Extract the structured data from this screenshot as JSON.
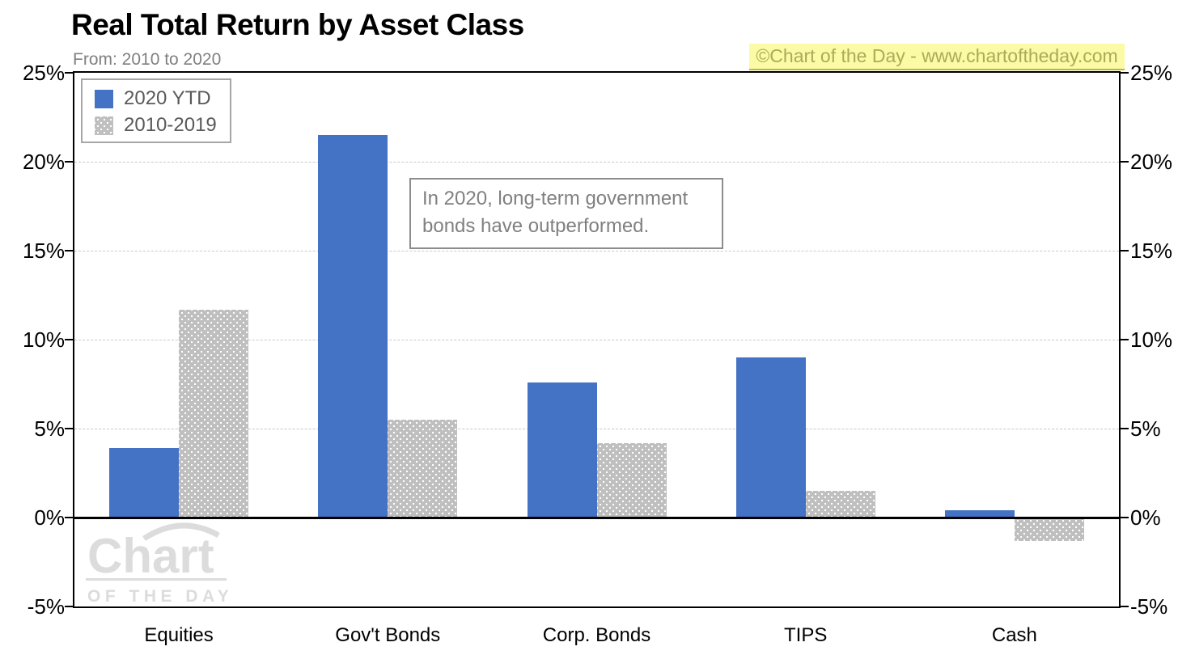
{
  "header": {
    "title": "Real Total Return by Asset Class",
    "subtitle": "From: 2010 to 2020"
  },
  "watermark": {
    "copyright": "©Chart of the Day - www.chartoftheday.com",
    "logo_word": "Chart",
    "logo_subword": "OF THE DAY"
  },
  "legend": {
    "items": [
      {
        "label": "2020 YTD",
        "color": "#4472C4"
      },
      {
        "label": "2010-2019",
        "color": "#BFBFBF"
      }
    ]
  },
  "annotation": {
    "lines": [
      "In 2020, long-term government",
      "bonds have outperformed."
    ]
  },
  "colors": {
    "series_current": "#4472C4",
    "series_previous": "#BFBFBF",
    "highlight_bg": "#FBFBA5",
    "highlight_text": "#ABAB58",
    "gridline": "#C9C9C9",
    "muted_text": "#808080"
  },
  "chart_data": {
    "type": "bar",
    "title": "Real Total Return by Asset Class",
    "subtitle": "From: 2010 to 2020",
    "categories": [
      "Equities",
      "Gov't Bonds",
      "Corp. Bonds",
      "TIPS",
      "Cash"
    ],
    "series": [
      {
        "name": "2020 YTD",
        "color": "#4472C4",
        "values": [
          3.9,
          21.5,
          7.6,
          9.0,
          0.4
        ]
      },
      {
        "name": "2010-2019",
        "color": "#BFBFBF",
        "values": [
          11.7,
          5.5,
          4.2,
          1.5,
          -1.3
        ]
      }
    ],
    "ylabel": "",
    "xlabel": "",
    "ylim": [
      -5,
      25
    ],
    "ytick_values": [
      25,
      20,
      15,
      10,
      5,
      0,
      -5
    ],
    "ytick_labels": [
      "25%",
      "20%",
      "15%",
      "10%",
      "5%",
      "0%",
      "-5%"
    ],
    "grid": "horizontal-dashed",
    "legend_position": "top-left",
    "annotation": "In 2020, long-term government bonds have outperformed."
  }
}
